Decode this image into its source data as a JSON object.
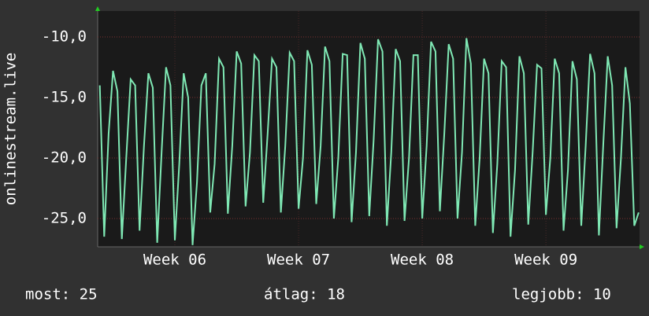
{
  "chart_data": {
    "type": "line",
    "y_label": "onlinestream.live",
    "stats": [
      "most: 25",
      "átlag: 18",
      "legjobb: 10"
    ],
    "xlim": [
      -0.87,
      29.8
    ],
    "xticks": [
      {
        "value": 3.5,
        "label": "Week 06"
      },
      {
        "value": 10.5,
        "label": "Week 07"
      },
      {
        "value": 17.5,
        "label": "Week 08"
      },
      {
        "value": 24.5,
        "label": "Week 09"
      }
    ],
    "ylim": [
      -27.34,
      -7.86
    ],
    "yticks": [
      {
        "value": -25,
        "label": "-25,0"
      },
      {
        "value": -20,
        "label": "-20,0"
      },
      {
        "value": -15,
        "label": "-15,0"
      },
      {
        "value": -10,
        "label": "-10,0"
      }
    ],
    "grid": true,
    "x": [
      -0.75,
      -0.5,
      -0.25,
      0,
      0.25,
      0.5,
      0.75,
      1,
      1.25,
      1.5,
      1.75,
      2,
      2.25,
      2.5,
      2.75,
      3,
      3.25,
      3.5,
      3.75,
      4,
      4.25,
      4.5,
      4.75,
      5,
      5.25,
      5.5,
      5.75,
      6,
      6.25,
      6.5,
      6.75,
      7,
      7.25,
      7.5,
      7.75,
      8,
      8.25,
      8.5,
      8.75,
      9,
      9.25,
      9.5,
      9.75,
      10,
      10.25,
      10.5,
      10.75,
      11,
      11.25,
      11.5,
      11.75,
      12,
      12.25,
      12.5,
      12.75,
      13,
      13.25,
      13.5,
      13.75,
      14,
      14.25,
      14.5,
      14.75,
      15,
      15.25,
      15.5,
      15.75,
      16,
      16.25,
      16.5,
      16.75,
      17,
      17.25,
      17.5,
      17.75,
      18,
      18.25,
      18.5,
      18.75,
      19,
      19.25,
      19.5,
      19.75,
      20,
      20.25,
      20.5,
      20.75,
      21,
      21.25,
      21.5,
      21.75,
      22,
      22.25,
      22.5,
      22.75,
      23,
      23.25,
      23.5,
      23.75,
      24,
      24.25,
      24.5,
      24.75,
      25,
      25.25,
      25.5,
      25.75,
      26,
      26.25,
      26.5,
      26.75,
      27,
      27.25,
      27.5,
      27.75,
      28,
      28.25,
      28.5,
      28.75,
      29,
      29.25,
      29.5,
      29.75
    ],
    "series": [
      {
        "name": "onlinestream.live",
        "color": "#7fe8b4",
        "values": [
          -14,
          -26.5,
          -18,
          -12.8,
          -14.5,
          -26.7,
          -20,
          -13.5,
          -14,
          -26,
          -19,
          -13,
          -14.2,
          -27,
          -19.5,
          -12.5,
          -14,
          -26.8,
          -20.5,
          -13,
          -15,
          -27.2,
          -22,
          -14,
          -13,
          -24.5,
          -20.5,
          -11.8,
          -12.5,
          -24.6,
          -19,
          -11.2,
          -12.2,
          -24,
          -19.5,
          -11.5,
          -12,
          -23.7,
          -18,
          -11.8,
          -12.5,
          -24.5,
          -19,
          -11.3,
          -12,
          -24.2,
          -20,
          -11.1,
          -12.3,
          -23.8,
          -19,
          -10.8,
          -12,
          -25,
          -20,
          -11.4,
          -11.5,
          -25.3,
          -19.5,
          -10.5,
          -11.8,
          -24.8,
          -18.5,
          -10.2,
          -11.2,
          -25.6,
          -19.5,
          -11,
          -12,
          -25.2,
          -20,
          -11.5,
          -11.5,
          -25,
          -19,
          -10.4,
          -11.2,
          -24.4,
          -18,
          -10.6,
          -11.8,
          -25,
          -19.5,
          -10.1,
          -12.2,
          -25.6,
          -20,
          -11.8,
          -13,
          -26.2,
          -20.5,
          -12,
          -12.5,
          -26.5,
          -21,
          -11.6,
          -13,
          -25.5,
          -19.5,
          -12.3,
          -12.6,
          -24.7,
          -20,
          -11.8,
          -13,
          -26,
          -21,
          -12,
          -13.5,
          -25.6,
          -19,
          -11.4,
          -13,
          -26.4,
          -18.8,
          -11.6,
          -14,
          -25.8,
          -20,
          -12.5,
          -15.5,
          -25.6,
          -24.5
        ]
      }
    ]
  }
}
